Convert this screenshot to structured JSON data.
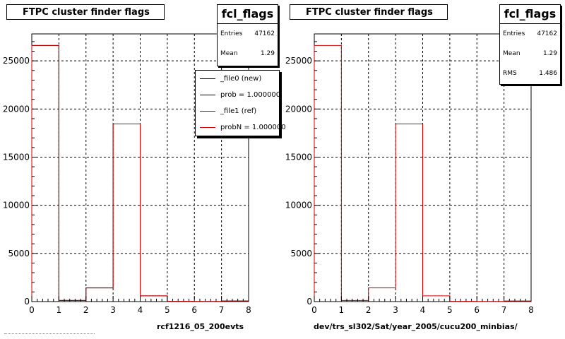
{
  "chart_data": [
    {
      "type": "bar",
      "histogram_name": "fcl_flags",
      "title": "FTPC cluster finder flags",
      "xlabel": "rcf1216_05_200evts",
      "ylabel": "",
      "xlim": [
        0,
        8
      ],
      "ylim": [
        0,
        27800
      ],
      "x_ticks": [
        "0",
        "1",
        "2",
        "3",
        "4",
        "5",
        "6",
        "7",
        "8"
      ],
      "y_ticks": [
        "0",
        "5000",
        "10000",
        "15000",
        "20000",
        "25000"
      ],
      "y_tick_values": [
        0,
        5000,
        10000,
        15000,
        20000,
        25000
      ],
      "grid": true,
      "bin_edges": [
        0,
        1,
        2,
        3,
        4,
        5,
        6,
        7,
        8
      ],
      "series": [
        {
          "name": "_file0 (new)",
          "color": "#000000",
          "values": [
            26600,
            120,
            1420,
            18450,
            600,
            30,
            20,
            60
          ]
        },
        {
          "name": "_file1 (ref)",
          "color": "#cc0000",
          "values": [
            26600,
            120,
            1420,
            18450,
            600,
            30,
            20,
            60
          ]
        }
      ],
      "stats": {
        "entries_label": "Entries",
        "entries": "47162",
        "mean_label": "Mean",
        "mean": "1.29"
      },
      "legend": {
        "position": "top-right",
        "entries": [
          {
            "label": "_file0 (new)",
            "color": "#000000"
          },
          {
            "label": "prob = 1.000000",
            "color": "#000000"
          },
          {
            "label": "_file1 (ref)",
            "color": "#cc0000"
          },
          {
            "label": "probN = 1.000000",
            "color": "#cc0000"
          }
        ]
      }
    },
    {
      "type": "bar",
      "histogram_name": "fcl_flags",
      "title": "FTPC cluster finder flags",
      "xlabel": "dev/trs_sl302/Sat/year_2005/cucu200_minbias/",
      "ylabel": "",
      "xlim": [
        0,
        8
      ],
      "ylim": [
        0,
        27800
      ],
      "x_ticks": [
        "0",
        "1",
        "2",
        "3",
        "4",
        "5",
        "6",
        "7",
        "8"
      ],
      "y_ticks": [
        "0",
        "5000",
        "10000",
        "15000",
        "20000",
        "25000"
      ],
      "y_tick_values": [
        0,
        5000,
        10000,
        15000,
        20000,
        25000
      ],
      "grid": true,
      "bin_edges": [
        0,
        1,
        2,
        3,
        4,
        5,
        6,
        7,
        8
      ],
      "series": [
        {
          "name": "",
          "color": "#cc0000",
          "values": [
            26600,
            120,
            1420,
            18450,
            600,
            30,
            20,
            60
          ]
        }
      ],
      "stats": {
        "entries_label": "Entries",
        "entries": "47162",
        "mean_label": "Mean",
        "mean": "1.29",
        "rms_label": "RMS",
        "rms": "1.486"
      }
    }
  ]
}
